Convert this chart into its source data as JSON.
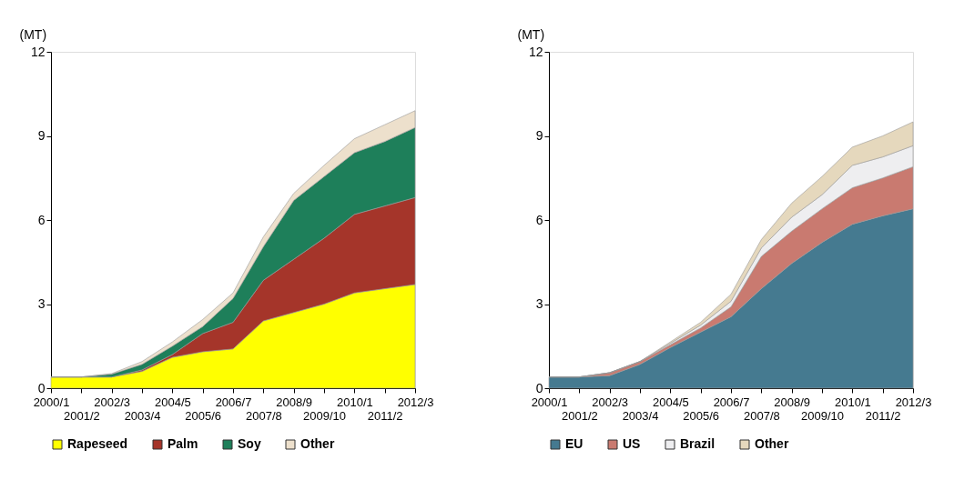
{
  "chart_data": [
    {
      "type": "area",
      "stacked": true,
      "ylabel": "(MT)",
      "categories": [
        "2000/1",
        "2001/2",
        "2002/3",
        "2003/4",
        "2004/5",
        "2005/6",
        "2006/7",
        "2007/8",
        "2008/9",
        "2009/10",
        "2010/1",
        "2011/2",
        "2012/3"
      ],
      "series": [
        {
          "name": "Rapeseed",
          "color": "#ffff00",
          "values": [
            0.4,
            0.4,
            0.4,
            0.6,
            1.1,
            1.3,
            1.4,
            2.4,
            2.7,
            3.0,
            3.4,
            3.55,
            3.7
          ]
        },
        {
          "name": "Palm",
          "color": "#a5352a",
          "values": [
            0,
            0,
            0,
            0.05,
            0.1,
            0.65,
            0.95,
            1.45,
            1.9,
            2.35,
            2.8,
            2.95,
            3.1
          ]
        },
        {
          "name": "Soy",
          "color": "#1e7f5a",
          "values": [
            0,
            0,
            0.1,
            0.2,
            0.3,
            0.25,
            0.85,
            1.2,
            2.1,
            2.2,
            2.2,
            2.3,
            2.5
          ]
        },
        {
          "name": "Other",
          "color": "#ede0cc",
          "values": [
            0,
            0,
            0.02,
            0.1,
            0.15,
            0.25,
            0.2,
            0.35,
            0.25,
            0.4,
            0.5,
            0.6,
            0.6
          ]
        }
      ],
      "ylim": [
        0,
        12
      ],
      "yticks": [
        0,
        3,
        6,
        9,
        12
      ],
      "grid": false,
      "legend": "bottom"
    },
    {
      "type": "area",
      "stacked": true,
      "ylabel": "(MT)",
      "categories": [
        "2000/1",
        "2001/2",
        "2002/3",
        "2003/4",
        "2004/5",
        "2005/6",
        "2006/7",
        "2007/8",
        "2008/9",
        "2009/10",
        "2010/1",
        "2011/2",
        "2012/3"
      ],
      "series": [
        {
          "name": "EU",
          "color": "#457a90",
          "values": [
            0.4,
            0.4,
            0.45,
            0.85,
            1.45,
            2.0,
            2.55,
            3.55,
            4.45,
            5.2,
            5.85,
            6.15,
            6.4
          ]
        },
        {
          "name": "US",
          "color": "#c97a70",
          "values": [
            0,
            0,
            0.1,
            0.1,
            0.1,
            0.15,
            0.35,
            1.15,
            1.15,
            1.2,
            1.3,
            1.35,
            1.5
          ]
        },
        {
          "name": "Brazil",
          "color": "#eeeef0",
          "values": [
            0,
            0,
            0,
            0,
            0.05,
            0.1,
            0.2,
            0.3,
            0.5,
            0.5,
            0.8,
            0.75,
            0.75
          ]
        },
        {
          "name": "Other",
          "color": "#e5d8bd",
          "values": [
            0,
            0,
            0,
            0,
            0.05,
            0.1,
            0.25,
            0.3,
            0.5,
            0.65,
            0.65,
            0.75,
            0.85
          ]
        }
      ],
      "ylim": [
        0,
        12
      ],
      "yticks": [
        0,
        3,
        6,
        9,
        12
      ],
      "grid": false,
      "legend": "bottom"
    }
  ]
}
